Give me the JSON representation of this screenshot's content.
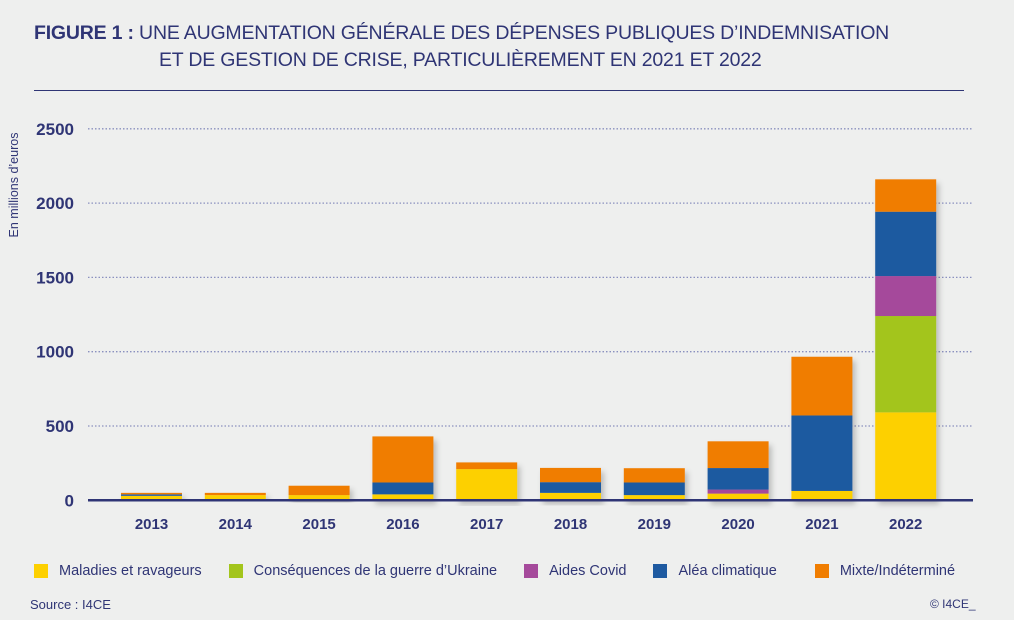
{
  "figure": {
    "label": "FIGURE 1 :",
    "title_line1": " UNE AUGMENTATION GÉNÉRALE DES DÉPENSES PUBLIQUES D’INDEMNISATION",
    "title_line2": "ET DE GESTION DE CRISE, PARTICULIÈREMENT EN 2021 ET 2022",
    "source": "Source : I4CE",
    "copyright": "© I4CE_"
  },
  "chart_data": {
    "type": "bar",
    "stacked": true,
    "title": "Une augmentation générale des dépenses publiques d’indemnisation et de gestion de crise, particulièrement en 2021 et 2022",
    "xlabel": "",
    "ylabel": "En millions d’euros",
    "ylim": [
      0,
      2500
    ],
    "yticks": [
      0,
      500,
      1000,
      1500,
      2000,
      2500
    ],
    "grid": true,
    "legend_position": "bottom",
    "categories": [
      "2013",
      "2014",
      "2015",
      "2016",
      "2017",
      "2018",
      "2019",
      "2020",
      "2021",
      "2022"
    ],
    "series": [
      {
        "name": "Maladies et ravageurs",
        "color": "#fdd000",
        "values": [
          30,
          35,
          35,
          40,
          210,
          50,
          35,
          45,
          63,
          592
        ]
      },
      {
        "name": "Conséquences de la guerre d’Ukraine",
        "color": "#a3c51c",
        "values": [
          0,
          0,
          0,
          0,
          0,
          0,
          0,
          0,
          0,
          648
        ]
      },
      {
        "name": "Aides Covid",
        "color": "#a54a9b",
        "values": [
          0,
          0,
          0,
          0,
          0,
          0,
          0,
          27,
          0,
          269
        ]
      },
      {
        "name": "Aléa climatique",
        "color": "#1e5aa0",
        "values": [
          10,
          0,
          0,
          80,
          0,
          72,
          85,
          145,
          508,
          433
        ]
      },
      {
        "name": "Mixte/Indéterminé",
        "color": "#f07d00",
        "values": [
          10,
          15,
          63,
          310,
          45,
          96,
          96,
          180,
          395,
          218
        ]
      }
    ]
  }
}
